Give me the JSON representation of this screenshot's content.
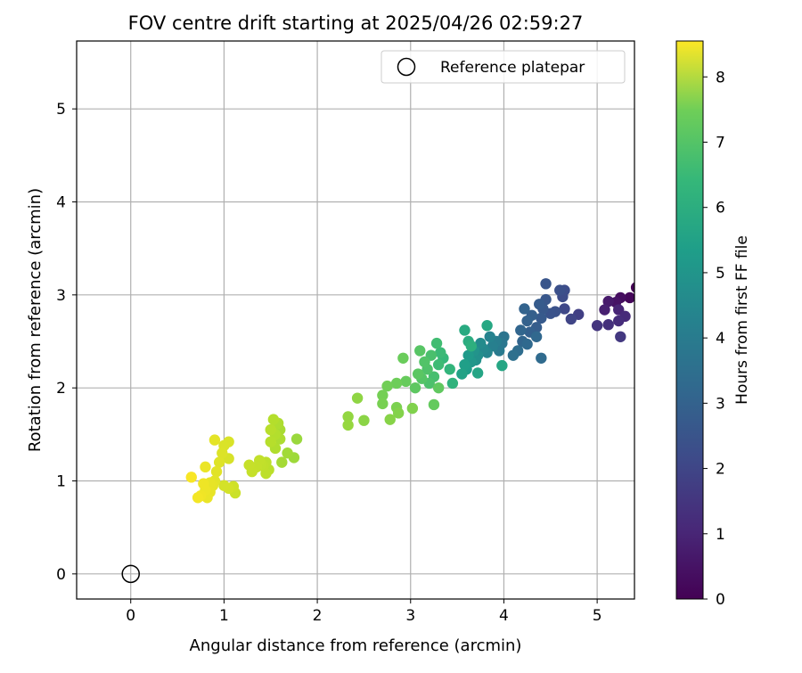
{
  "chart_data": {
    "type": "scatter",
    "title": "FOV centre drift starting at 2025/04/26 02:59:27",
    "xlabel": "Angular distance from reference (arcmin)",
    "ylabel": "Rotation from reference (arcmin)",
    "xlim": [
      -0.58,
      5.4
    ],
    "ylim": [
      -0.27,
      5.73
    ],
    "xticks": [
      0,
      1,
      2,
      3,
      4,
      5
    ],
    "yticks": [
      0,
      1,
      2,
      3,
      4,
      5
    ],
    "grid": true,
    "colormap": "viridis",
    "colorbar": {
      "label": "Hours from first FF file",
      "range": [
        0,
        8.55
      ],
      "ticks": [
        0,
        1,
        2,
        3,
        4,
        5,
        6,
        7,
        8
      ]
    },
    "legend": {
      "position": "top-right",
      "entries": [
        "Reference platepar"
      ]
    },
    "reference_point": {
      "label": "Reference platepar",
      "x": 0,
      "y": 0
    },
    "series": [
      {
        "points": [
          [
            5.42,
            3.08,
            0.0
          ],
          [
            5.35,
            2.97,
            0.15
          ],
          [
            5.25,
            2.97,
            0.3
          ],
          [
            5.2,
            2.92,
            0.45
          ],
          [
            5.12,
            2.93,
            0.6
          ],
          [
            5.08,
            2.84,
            0.75
          ],
          [
            5.23,
            2.84,
            0.9
          ],
          [
            5.3,
            2.77,
            1.0
          ],
          [
            5.23,
            2.72,
            1.1
          ],
          [
            5.12,
            2.68,
            1.2
          ],
          [
            5.0,
            2.67,
            1.3
          ],
          [
            5.25,
            2.55,
            1.4
          ],
          [
            4.8,
            2.79,
            1.6
          ],
          [
            4.72,
            2.74,
            1.75
          ],
          [
            4.65,
            2.85,
            1.85
          ],
          [
            4.63,
            2.98,
            1.95
          ],
          [
            4.65,
            3.05,
            2.0
          ],
          [
            4.6,
            3.05,
            2.1
          ],
          [
            4.55,
            2.82,
            2.15
          ],
          [
            4.5,
            2.8,
            2.2
          ],
          [
            4.45,
            3.12,
            2.25
          ],
          [
            4.45,
            2.95,
            2.3
          ],
          [
            4.42,
            2.85,
            2.35
          ],
          [
            4.4,
            2.75,
            2.4
          ],
          [
            4.38,
            2.9,
            2.45
          ],
          [
            4.35,
            2.65,
            2.5
          ],
          [
            4.3,
            2.78,
            2.55
          ],
          [
            4.28,
            2.6,
            2.6
          ],
          [
            4.25,
            2.72,
            2.65
          ],
          [
            4.22,
            2.85,
            2.7
          ],
          [
            4.2,
            2.5,
            2.75
          ],
          [
            4.18,
            2.62,
            2.8
          ],
          [
            4.35,
            2.55,
            2.85
          ],
          [
            4.25,
            2.47,
            2.9
          ],
          [
            4.4,
            2.32,
            2.95
          ],
          [
            4.15,
            2.4,
            3.05
          ],
          [
            4.1,
            2.35,
            3.15
          ],
          [
            4.0,
            2.55,
            3.3
          ],
          [
            3.98,
            2.48,
            3.4
          ],
          [
            3.95,
            2.4,
            3.5
          ],
          [
            3.92,
            2.5,
            3.6
          ],
          [
            3.88,
            2.45,
            3.7
          ],
          [
            3.85,
            2.55,
            3.8
          ],
          [
            3.82,
            2.38,
            3.9
          ],
          [
            3.78,
            2.42,
            4.0
          ],
          [
            3.75,
            2.48,
            4.1
          ],
          [
            3.72,
            2.35,
            4.2
          ],
          [
            3.7,
            2.3,
            4.3
          ],
          [
            3.68,
            2.4,
            4.4
          ],
          [
            3.65,
            2.28,
            4.5
          ],
          [
            3.62,
            2.35,
            4.6
          ],
          [
            3.6,
            2.2,
            4.7
          ],
          [
            3.58,
            2.25,
            4.8
          ],
          [
            3.55,
            2.15,
            4.9
          ],
          [
            3.72,
            2.16,
            5.0
          ],
          [
            3.98,
            2.24,
            5.05
          ],
          [
            3.82,
            2.67,
            5.1
          ],
          [
            3.58,
            2.62,
            5.2
          ],
          [
            3.62,
            2.5,
            5.3
          ],
          [
            3.65,
            2.45,
            5.4
          ],
          [
            3.45,
            2.05,
            5.5
          ],
          [
            3.42,
            2.2,
            5.6
          ],
          [
            3.35,
            2.32,
            5.7
          ],
          [
            3.32,
            2.38,
            5.8
          ],
          [
            3.3,
            2.25,
            5.85
          ],
          [
            3.28,
            2.48,
            5.9
          ],
          [
            3.25,
            2.12,
            6.0
          ],
          [
            3.22,
            2.35,
            6.05
          ],
          [
            3.2,
            2.05,
            6.1
          ],
          [
            3.18,
            2.2,
            6.15
          ],
          [
            3.15,
            2.28,
            6.2
          ],
          [
            3.12,
            2.1,
            6.25
          ],
          [
            3.1,
            2.4,
            6.3
          ],
          [
            3.08,
            2.15,
            6.35
          ],
          [
            3.05,
            2.0,
            6.4
          ],
          [
            3.3,
            2.0,
            6.45
          ],
          [
            3.25,
            1.82,
            6.5
          ],
          [
            2.95,
            2.07,
            6.55
          ],
          [
            2.92,
            2.32,
            6.6
          ],
          [
            2.85,
            2.05,
            6.65
          ],
          [
            2.75,
            2.02,
            6.7
          ],
          [
            2.7,
            1.92,
            6.75
          ],
          [
            2.7,
            1.83,
            6.8
          ],
          [
            2.85,
            1.79,
            6.85
          ],
          [
            3.02,
            1.78,
            6.9
          ],
          [
            2.87,
            1.73,
            6.95
          ],
          [
            2.78,
            1.66,
            7.0
          ],
          [
            2.5,
            1.65,
            7.05
          ],
          [
            2.43,
            1.89,
            7.1
          ],
          [
            2.33,
            1.69,
            7.15
          ],
          [
            2.33,
            1.6,
            7.2
          ],
          [
            1.78,
            1.45,
            7.25
          ],
          [
            1.75,
            1.25,
            7.3
          ],
          [
            1.68,
            1.3,
            7.35
          ],
          [
            1.62,
            1.2,
            7.4
          ],
          [
            1.6,
            1.55,
            7.45
          ],
          [
            1.6,
            1.45,
            7.5
          ],
          [
            1.58,
            1.62,
            7.52
          ],
          [
            1.55,
            1.35,
            7.55
          ],
          [
            1.55,
            1.5,
            7.58
          ],
          [
            1.53,
            1.66,
            7.6
          ],
          [
            1.5,
            1.42,
            7.62
          ],
          [
            1.5,
            1.55,
            7.65
          ],
          [
            1.48,
            1.12,
            7.68
          ],
          [
            1.45,
            1.2,
            7.7
          ],
          [
            1.45,
            1.08,
            7.72
          ],
          [
            1.42,
            1.16,
            7.74
          ],
          [
            1.4,
            1.18,
            7.76
          ],
          [
            1.38,
            1.22,
            7.78
          ],
          [
            1.35,
            1.15,
            7.8
          ],
          [
            1.3,
            1.1,
            7.82
          ],
          [
            1.27,
            1.17,
            7.84
          ],
          [
            1.12,
            0.87,
            7.9
          ],
          [
            1.1,
            0.94,
            7.95
          ],
          [
            1.05,
            0.92,
            8.0
          ],
          [
            1.0,
            0.95,
            8.02
          ],
          [
            1.05,
            1.24,
            8.05
          ],
          [
            1.05,
            1.42,
            8.08
          ],
          [
            1.0,
            1.38,
            8.1
          ],
          [
            0.98,
            1.3,
            8.12
          ],
          [
            0.95,
            1.2,
            8.15
          ],
          [
            0.92,
            1.1,
            8.18
          ],
          [
            0.9,
            1.0,
            8.2
          ],
          [
            0.9,
            1.44,
            8.22
          ],
          [
            0.88,
            0.95,
            8.24
          ],
          [
            0.85,
            0.98,
            8.26
          ],
          [
            0.85,
            0.88,
            8.28
          ],
          [
            0.82,
            0.82,
            8.3
          ],
          [
            0.8,
            1.15,
            8.32
          ],
          [
            0.8,
            0.9,
            8.34
          ],
          [
            0.78,
            0.97,
            8.36
          ],
          [
            0.75,
            0.84,
            8.38
          ],
          [
            0.72,
            0.82,
            8.42
          ],
          [
            0.65,
            1.04,
            8.48
          ]
        ]
      }
    ]
  }
}
